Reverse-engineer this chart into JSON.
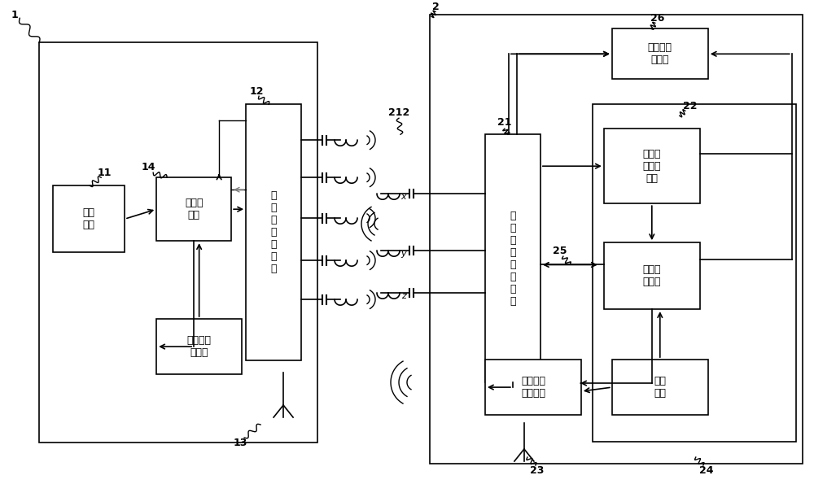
{
  "bg_color": "#ffffff",
  "line_color": "#000000",
  "labels": {
    "sensor": "感应\n装置",
    "gate_ctrl": "门控制\n模块",
    "lf_gate": "低\n频\n门\n收\n发\n模\n块",
    "hf_gate_rx": "高频门接\n收模块",
    "lf_key_rx": "低\n频\n钥\n匙\n接\n收\n模\n块",
    "backup_relay": "备用转发\n器模块",
    "analog_proc": "模拟信\n号处理\n模块",
    "key_ctrl": "钥匙控\n制模块",
    "hf_key_tx": "高频钥匙\n发射模块",
    "power": "电源\n模块"
  }
}
